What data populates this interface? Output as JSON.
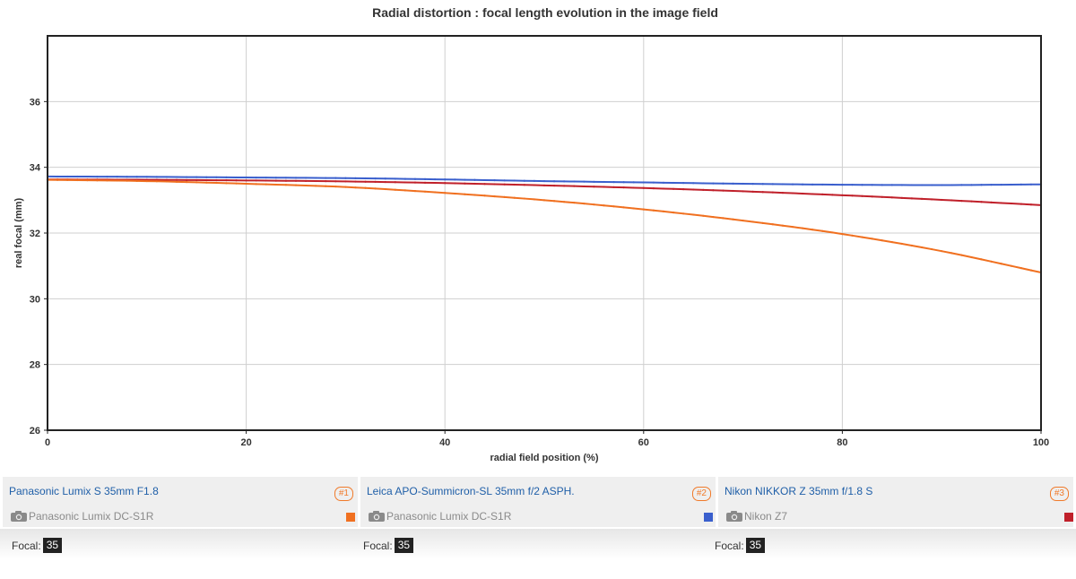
{
  "chart_data": {
    "type": "line",
    "title": "Radial distortion : focal length evolution in the image field",
    "xlabel": "radial field position (%)",
    "ylabel": "real focal (mm)",
    "xlim": [
      0,
      100
    ],
    "ylim": [
      26,
      38
    ],
    "xticks": [
      0,
      20,
      40,
      60,
      80,
      100
    ],
    "yticks": [
      26,
      28,
      30,
      32,
      34,
      36
    ],
    "grid": true,
    "series": [
      {
        "name": "Panasonic Lumix S 35mm F1.8",
        "color": "#f07020",
        "x": [
          0,
          10,
          20,
          30,
          40,
          50,
          60,
          70,
          80,
          90,
          100
        ],
        "values": [
          33.62,
          33.58,
          33.5,
          33.4,
          33.22,
          33.0,
          32.72,
          32.38,
          31.97,
          31.45,
          30.8
        ]
      },
      {
        "name": "Leica APO-Summicron-SL 35mm f/2 ASPH.",
        "color": "#3a5fcd",
        "x": [
          0,
          10,
          20,
          30,
          40,
          50,
          60,
          70,
          80,
          90,
          100
        ],
        "values": [
          33.72,
          33.71,
          33.69,
          33.67,
          33.63,
          33.58,
          33.54,
          33.5,
          33.47,
          33.46,
          33.48
        ]
      },
      {
        "name": "Nikon NIKKOR Z 35mm f/1.8 S",
        "color": "#c0202a",
        "x": [
          0,
          10,
          20,
          30,
          40,
          50,
          60,
          70,
          80,
          90,
          100
        ],
        "values": [
          33.63,
          33.62,
          33.6,
          33.57,
          33.52,
          33.45,
          33.37,
          33.27,
          33.15,
          33.01,
          32.85
        ]
      }
    ]
  },
  "lenses": [
    {
      "name": "Panasonic Lumix S 35mm F1.8",
      "number": "#1",
      "camera": "Panasonic Lumix DC-S1R",
      "color": "#f07020",
      "focal_label": "Focal:",
      "focal": "35"
    },
    {
      "name": "Leica APO-Summicron-SL 35mm f/2 ASPH.",
      "number": "#2",
      "camera": "Panasonic Lumix DC-S1R",
      "color": "#3a5fcd",
      "focal_label": "Focal:",
      "focal": "35"
    },
    {
      "name": "Nikon NIKKOR Z 35mm f/1.8 S",
      "number": "#3",
      "camera": "Nikon Z7",
      "color": "#c0202a",
      "focal_label": "Focal:",
      "focal": "35"
    }
  ],
  "icons": {
    "camera": "camera-icon"
  }
}
